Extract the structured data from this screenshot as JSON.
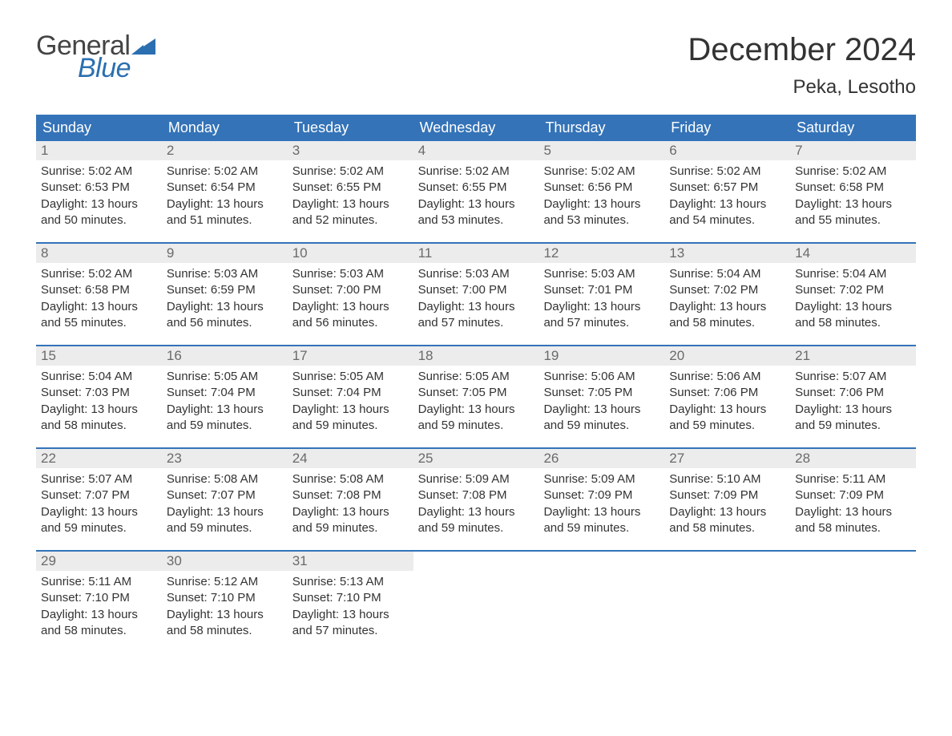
{
  "logo": {
    "text1": "General",
    "text2": "Blue",
    "flag_color": "#2b6fb0"
  },
  "title": "December 2024",
  "location": "Peka, Lesotho",
  "colors": {
    "header_bg": "#3473b8",
    "header_text": "#ffffff",
    "daynum_bg": "#ececec",
    "daynum_text": "#6a6a6a",
    "week_border": "#3473b8",
    "body_text": "#333333",
    "logo_blue": "#2b6fb0"
  },
  "day_names": [
    "Sunday",
    "Monday",
    "Tuesday",
    "Wednesday",
    "Thursday",
    "Friday",
    "Saturday"
  ],
  "labels": {
    "sunrise": "Sunrise:",
    "sunset": "Sunset:",
    "daylight": "Daylight:"
  },
  "weeks": [
    [
      {
        "n": "1",
        "sr": "5:02 AM",
        "ss": "6:53 PM",
        "dl": "13 hours and 50 minutes."
      },
      {
        "n": "2",
        "sr": "5:02 AM",
        "ss": "6:54 PM",
        "dl": "13 hours and 51 minutes."
      },
      {
        "n": "3",
        "sr": "5:02 AM",
        "ss": "6:55 PM",
        "dl": "13 hours and 52 minutes."
      },
      {
        "n": "4",
        "sr": "5:02 AM",
        "ss": "6:55 PM",
        "dl": "13 hours and 53 minutes."
      },
      {
        "n": "5",
        "sr": "5:02 AM",
        "ss": "6:56 PM",
        "dl": "13 hours and 53 minutes."
      },
      {
        "n": "6",
        "sr": "5:02 AM",
        "ss": "6:57 PM",
        "dl": "13 hours and 54 minutes."
      },
      {
        "n": "7",
        "sr": "5:02 AM",
        "ss": "6:58 PM",
        "dl": "13 hours and 55 minutes."
      }
    ],
    [
      {
        "n": "8",
        "sr": "5:02 AM",
        "ss": "6:58 PM",
        "dl": "13 hours and 55 minutes."
      },
      {
        "n": "9",
        "sr": "5:03 AM",
        "ss": "6:59 PM",
        "dl": "13 hours and 56 minutes."
      },
      {
        "n": "10",
        "sr": "5:03 AM",
        "ss": "7:00 PM",
        "dl": "13 hours and 56 minutes."
      },
      {
        "n": "11",
        "sr": "5:03 AM",
        "ss": "7:00 PM",
        "dl": "13 hours and 57 minutes."
      },
      {
        "n": "12",
        "sr": "5:03 AM",
        "ss": "7:01 PM",
        "dl": "13 hours and 57 minutes."
      },
      {
        "n": "13",
        "sr": "5:04 AM",
        "ss": "7:02 PM",
        "dl": "13 hours and 58 minutes."
      },
      {
        "n": "14",
        "sr": "5:04 AM",
        "ss": "7:02 PM",
        "dl": "13 hours and 58 minutes."
      }
    ],
    [
      {
        "n": "15",
        "sr": "5:04 AM",
        "ss": "7:03 PM",
        "dl": "13 hours and 58 minutes."
      },
      {
        "n": "16",
        "sr": "5:05 AM",
        "ss": "7:04 PM",
        "dl": "13 hours and 59 minutes."
      },
      {
        "n": "17",
        "sr": "5:05 AM",
        "ss": "7:04 PM",
        "dl": "13 hours and 59 minutes."
      },
      {
        "n": "18",
        "sr": "5:05 AM",
        "ss": "7:05 PM",
        "dl": "13 hours and 59 minutes."
      },
      {
        "n": "19",
        "sr": "5:06 AM",
        "ss": "7:05 PM",
        "dl": "13 hours and 59 minutes."
      },
      {
        "n": "20",
        "sr": "5:06 AM",
        "ss": "7:06 PM",
        "dl": "13 hours and 59 minutes."
      },
      {
        "n": "21",
        "sr": "5:07 AM",
        "ss": "7:06 PM",
        "dl": "13 hours and 59 minutes."
      }
    ],
    [
      {
        "n": "22",
        "sr": "5:07 AM",
        "ss": "7:07 PM",
        "dl": "13 hours and 59 minutes."
      },
      {
        "n": "23",
        "sr": "5:08 AM",
        "ss": "7:07 PM",
        "dl": "13 hours and 59 minutes."
      },
      {
        "n": "24",
        "sr": "5:08 AM",
        "ss": "7:08 PM",
        "dl": "13 hours and 59 minutes."
      },
      {
        "n": "25",
        "sr": "5:09 AM",
        "ss": "7:08 PM",
        "dl": "13 hours and 59 minutes."
      },
      {
        "n": "26",
        "sr": "5:09 AM",
        "ss": "7:09 PM",
        "dl": "13 hours and 59 minutes."
      },
      {
        "n": "27",
        "sr": "5:10 AM",
        "ss": "7:09 PM",
        "dl": "13 hours and 58 minutes."
      },
      {
        "n": "28",
        "sr": "5:11 AM",
        "ss": "7:09 PM",
        "dl": "13 hours and 58 minutes."
      }
    ],
    [
      {
        "n": "29",
        "sr": "5:11 AM",
        "ss": "7:10 PM",
        "dl": "13 hours and 58 minutes."
      },
      {
        "n": "30",
        "sr": "5:12 AM",
        "ss": "7:10 PM",
        "dl": "13 hours and 58 minutes."
      },
      {
        "n": "31",
        "sr": "5:13 AM",
        "ss": "7:10 PM",
        "dl": "13 hours and 57 minutes."
      },
      null,
      null,
      null,
      null
    ]
  ]
}
